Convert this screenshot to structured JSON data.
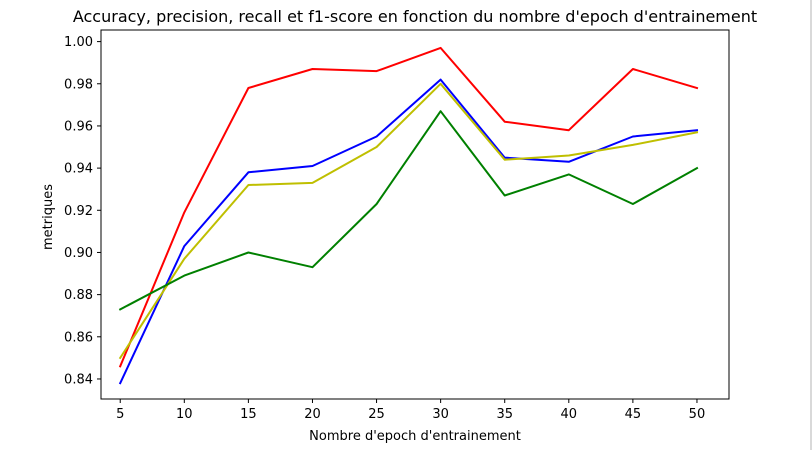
{
  "chart_data": {
    "type": "line",
    "title": "Accuracy, precision, recall et f1-score en fonction du nombre d'epoch d'entrainement",
    "xlabel": "Nombre d'epoch d'entrainement",
    "ylabel": "metriques",
    "x": [
      5,
      10,
      15,
      20,
      25,
      30,
      35,
      40,
      45,
      50
    ],
    "xticks": [
      "5",
      "10",
      "15",
      "20",
      "25",
      "30",
      "35",
      "40",
      "45",
      "50"
    ],
    "yticks": [
      "0.84",
      "0.86",
      "0.88",
      "0.90",
      "0.92",
      "0.94",
      "0.96",
      "0.98",
      "1.00"
    ],
    "ytick_values": [
      0.84,
      0.86,
      0.88,
      0.9,
      0.92,
      0.94,
      0.96,
      0.98,
      1.0
    ],
    "xlim": [
      3.5,
      52.5
    ],
    "ylim": [
      0.8305,
      1.0055
    ],
    "grid": false,
    "legend": "none",
    "series": [
      {
        "color": "#ff0000",
        "values": [
          0.846,
          0.919,
          0.978,
          0.987,
          0.986,
          0.997,
          0.962,
          0.958,
          0.987,
          0.978
        ]
      },
      {
        "color": "#0000ff",
        "values": [
          0.838,
          0.903,
          0.938,
          0.941,
          0.955,
          0.982,
          0.945,
          0.943,
          0.955,
          0.958
        ]
      },
      {
        "color": "#bfbf00",
        "values": [
          0.85,
          0.897,
          0.932,
          0.933,
          0.95,
          0.98,
          0.944,
          0.946,
          0.951,
          0.957
        ]
      },
      {
        "color": "#008000",
        "values": [
          0.873,
          0.889,
          0.9,
          0.893,
          0.923,
          0.967,
          0.927,
          0.937,
          0.923,
          0.94
        ]
      }
    ]
  }
}
